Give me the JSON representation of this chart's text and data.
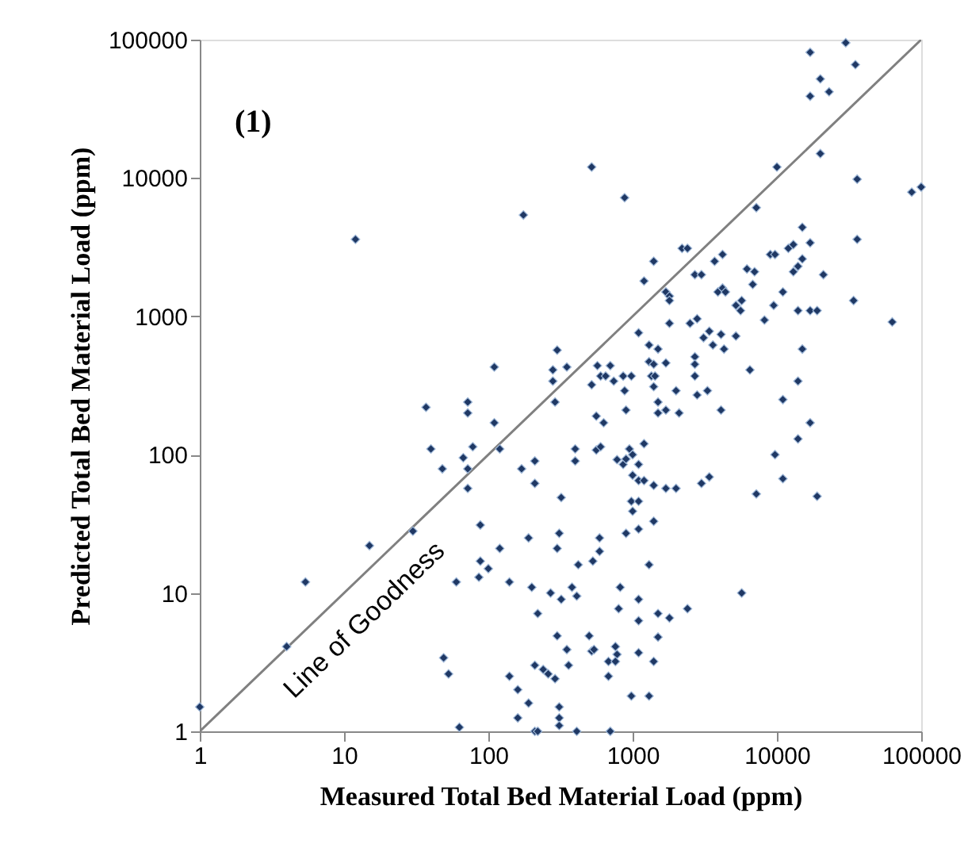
{
  "chart_data": {
    "type": "scatter",
    "xlabel": "Measured Total Bed Material Load (ppm)",
    "ylabel": "Predicted Total Bed Material Load (ppm)",
    "log": "xy",
    "marker": "diamond",
    "xlim": [
      1,
      100000
    ],
    "ylim": [
      1,
      100000
    ],
    "xticks": [
      1,
      10,
      100,
      1000,
      10000,
      100000
    ],
    "yticks": [
      1,
      10,
      100,
      1000,
      10000,
      100000
    ],
    "annotations": [
      "(1)",
      "Line of Goodness"
    ],
    "series": [
      {
        "type": "line",
        "color": "#808080",
        "line_style": "solid",
        "marker": "none",
        "x": [
          1,
          100000
        ],
        "values": [
          1,
          100000
        ]
      },
      {
        "color": "#1f3864",
        "x": [
          12,
          175,
          300,
          110,
          280,
          280,
          350,
          17000,
          30000,
          35000,
          20000,
          23000,
          17000,
          10000,
          20000,
          36000,
          86000,
          100000,
          520,
          880,
          7200,
          15000,
          17000,
          36000,
          2200,
          2400,
          1400,
          3700,
          4200,
          9000,
          9700,
          12000,
          13000,
          15000,
          14000,
          13000,
          6200,
          7000,
          2700,
          3000,
          21000,
          1200,
          1700,
          1800,
          1800,
          6800,
          3900,
          4200,
          4400,
          5700,
          5200,
          5600,
          11000,
          9500,
          8200,
          14000,
          17000,
          19000,
          34000,
          63000,
          1800,
          2500,
          2800,
          1100,
          3400,
          3100,
          4100,
          3600,
          4300,
          5200,
          1300,
          1500,
          1300,
          1400,
          1700,
          2700,
          2700,
          15000,
          6500,
          570,
          700,
          600,
          650,
          740,
          860,
          980,
          520,
          880,
          1350,
          1430,
          1400,
          2000,
          2700,
          2800,
          3300,
          14000,
          1500,
          1500,
          1700,
          2100,
          4100,
          900,
          11000,
          17000,
          14000,
          9700,
          11000,
          7200,
          19000,
          290,
          560,
          630,
          400,
          400,
          560,
          600,
          780,
          860,
          900,
          950,
          1000,
          1200,
          1100,
          1000,
          1100,
          1200,
          1400,
          1700,
          2000,
          3000,
          3400,
          320,
          980,
          1100,
          1000,
          1400,
          1100,
          900,
          590,
          590,
          310,
          300,
          420,
          530,
          1300,
          380,
          410,
          320,
          820,
          800,
          1100,
          1100,
          1500,
          1800,
          2400,
          5700,
          1500,
          300,
          500,
          350,
          360,
          520,
          540,
          760,
          780,
          680,
          760,
          680,
          1100,
          1400,
          980,
          1300,
          310,
          310,
          310,
          410,
          700,
          37,
          72,
          72,
          110,
          40,
          78,
          120,
          48,
          67,
          72,
          72,
          170,
          210,
          210,
          88,
          120,
          190,
          88,
          86,
          100,
          60,
          140,
          200,
          270,
          220,
          30,
          15,
          5.4,
          4,
          1,
          49,
          53,
          140,
          160,
          190,
          210,
          240,
          260,
          290,
          160,
          210,
          220,
          63
        ],
        "values": [
          3600,
          5400,
          570,
          430,
          410,
          340,
          430,
          81000,
          95000,
          66000,
          52000,
          42000,
          39000,
          12000,
          15000,
          9800,
          7900,
          8600,
          12000,
          7200,
          6100,
          4400,
          3400,
          3600,
          3100,
          3100,
          2500,
          2500,
          2800,
          2800,
          2800,
          3100,
          3300,
          2600,
          2300,
          2100,
          2200,
          2100,
          2000,
          2000,
          2000,
          1800,
          1500,
          1400,
          1300,
          1700,
          1500,
          1600,
          1500,
          1300,
          1200,
          1100,
          1500,
          1200,
          940,
          1100,
          1100,
          1100,
          1300,
          910,
          890,
          890,
          960,
          760,
          780,
          700,
          740,
          620,
          580,
          720,
          620,
          580,
          470,
          450,
          460,
          510,
          450,
          580,
          410,
          440,
          440,
          370,
          370,
          340,
          370,
          370,
          320,
          290,
          370,
          370,
          310,
          290,
          370,
          270,
          290,
          340,
          240,
          200,
          210,
          200,
          210,
          210,
          250,
          170,
          130,
          100,
          67,
          52,
          50,
          240,
          190,
          170,
          110,
          90,
          108,
          114,
          92,
          85,
          93,
          110,
          100,
          120,
          85,
          71,
          65,
          65,
          60,
          57,
          57,
          62,
          69,
          49,
          46,
          46,
          39,
          33,
          29,
          27,
          25,
          20,
          27,
          21,
          16,
          17,
          16,
          11,
          9.5,
          9,
          11,
          7.7,
          9,
          6.3,
          7.1,
          6.6,
          7.7,
          10,
          4.8,
          4.9,
          4.9,
          3.9,
          3,
          3.8,
          3.9,
          4.1,
          3.6,
          3.2,
          3.2,
          2.5,
          3.7,
          3.2,
          1.8,
          1.8,
          1.5,
          1.25,
          1.1,
          1,
          1,
          220,
          240,
          200,
          170,
          110,
          114,
          110,
          79,
          95,
          79,
          57,
          79,
          90,
          62,
          31,
          21,
          25,
          17,
          13,
          15,
          12,
          12,
          11,
          10,
          7.1,
          28,
          22,
          12,
          4.1,
          1.5,
          3.4,
          2.6,
          2.5,
          2,
          1.6,
          3,
          2.8,
          2.6,
          2.4,
          1.25,
          1,
          1,
          1.07
        ]
      }
    ]
  }
}
